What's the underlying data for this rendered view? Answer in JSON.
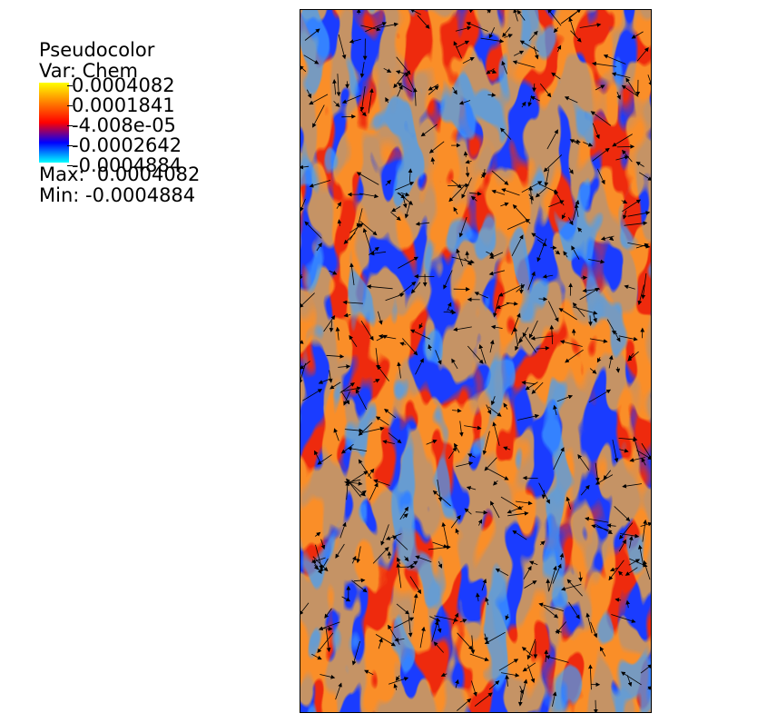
{
  "legend": {
    "title": "Pseudocolor",
    "variable": "Var: Chem",
    "ticks": [
      "0.0004082",
      "0.0001841",
      "-4.008e-05",
      "-0.0002642",
      "-0.0004884"
    ],
    "max_label": "Max:  0.0004082",
    "min_label": "Min: -0.0004884",
    "colormap": [
      "#ffff00",
      "#ff7f00",
      "#ff0000",
      "#0000ff",
      "#00ffff"
    ]
  },
  "plot": {
    "variable": "Chem",
    "min": -0.0004884,
    "max": 0.0004082,
    "field_colors": {
      "high": "#ffb030",
      "mid_high": "#ff5a14",
      "mid": "#ee2a10",
      "low": "#1a3cff",
      "lowest": "#3fa0ff",
      "border": "#000000",
      "vector": "#000000"
    }
  }
}
